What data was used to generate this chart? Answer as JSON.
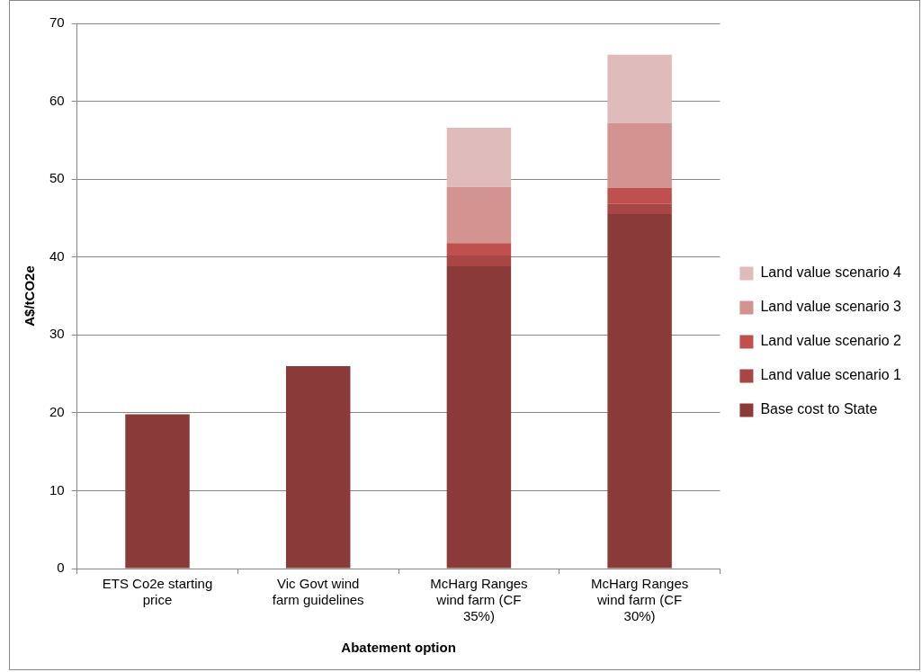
{
  "chart_data": {
    "type": "bar",
    "stacked": true,
    "xlabel": "Abatement option",
    "ylabel": "A$/tCO2e",
    "categories": [
      "ETS Co2e starting price",
      "Vic Govt wind farm guidelines",
      "McHarg Ranges wind farm (CF 35%)",
      "McHarg Ranges wind farm (CF 30%)"
    ],
    "series": [
      {
        "name": "Base cost to State",
        "color": "#8b3a3a",
        "values": [
          19.8,
          26.0,
          38.8,
          45.5
        ]
      },
      {
        "name": "Land value scenario 1",
        "color": "#a84545",
        "values": [
          null,
          null,
          1.4,
          1.3
        ]
      },
      {
        "name": "Land value scenario 2",
        "color": "#c0504d",
        "values": [
          null,
          null,
          1.6,
          2.1
        ]
      },
      {
        "name": "Land value scenario 3",
        "color": "#d39391",
        "values": [
          null,
          null,
          7.2,
          8.3
        ]
      },
      {
        "name": "Land value scenario 4",
        "color": "#e0bbbb",
        "values": [
          null,
          null,
          7.6,
          8.8
        ]
      }
    ],
    "ylim": [
      0,
      70
    ],
    "yticks": [
      0,
      10,
      20,
      30,
      40,
      50,
      60,
      70
    ],
    "grid": "y",
    "legend": "right"
  }
}
